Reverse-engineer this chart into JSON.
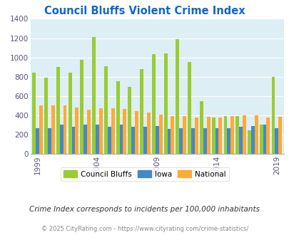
{
  "title": "Council Bluffs Violent Crime Index",
  "subtitle": "Crime Index corresponds to incidents per 100,000 inhabitants",
  "footer": "© 2025 CityRating.com - https://www.cityrating.com/crime-statistics/",
  "years": [
    1999,
    2000,
    2001,
    2002,
    2003,
    2004,
    2005,
    2006,
    2007,
    2008,
    2009,
    2010,
    2011,
    2012,
    2013,
    2014,
    2015,
    2016,
    2017,
    2018,
    2019
  ],
  "council_bluffs": [
    840,
    790,
    900,
    845,
    975,
    1210,
    905,
    755,
    695,
    880,
    1035,
    1045,
    1190,
    955,
    550,
    380,
    390,
    395,
    245,
    300,
    795
  ],
  "iowa": [
    270,
    270,
    300,
    285,
    300,
    300,
    285,
    300,
    285,
    285,
    290,
    260,
    265,
    265,
    270,
    270,
    265,
    285,
    290,
    300,
    270
  ],
  "national": [
    505,
    505,
    500,
    480,
    460,
    470,
    475,
    465,
    445,
    430,
    410,
    395,
    390,
    380,
    385,
    380,
    395,
    400,
    400,
    380,
    385
  ],
  "color_cb": "#99cc33",
  "color_iowa": "#4488cc",
  "color_national": "#ffaa33",
  "bg_color": "#ddeef4",
  "title_color": "#1166cc",
  "ylim": [
    0,
    1400
  ],
  "yticks": [
    0,
    200,
    400,
    600,
    800,
    1000,
    1200,
    1400
  ],
  "xtick_years": [
    1999,
    2004,
    2009,
    2014,
    2019
  ],
  "legend_labels": [
    "Council Bluffs",
    "Iowa",
    "National"
  ]
}
